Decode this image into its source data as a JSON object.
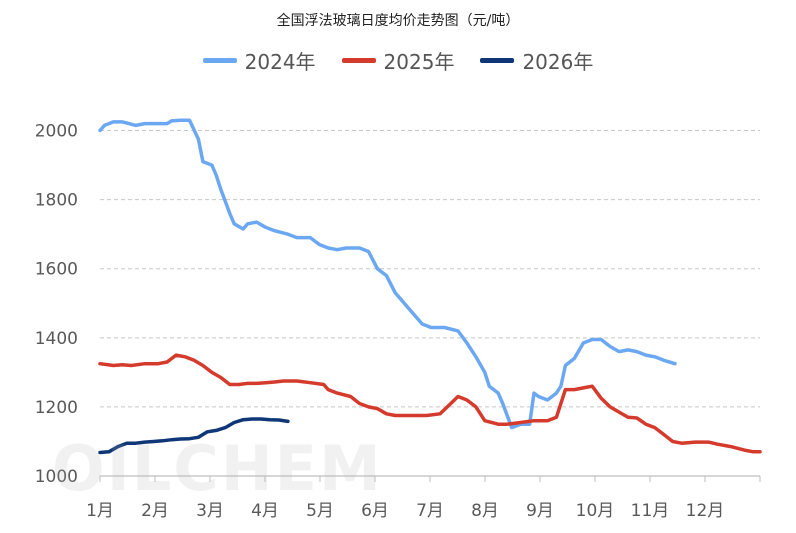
{
  "chart_data": {
    "type": "line",
    "title": "全国浮法玻璃日度均价走势图（元/吨）",
    "xlabel": "",
    "ylabel": "",
    "ylim": [
      1000,
      2100
    ],
    "y_ticks": [
      1000,
      1200,
      1400,
      1600,
      1800,
      2000
    ],
    "x_tick_labels": [
      "1月",
      "2月",
      "3月",
      "4月",
      "5月",
      "6月",
      "7月",
      "8月",
      "9月",
      "10月",
      "11月",
      "12月"
    ],
    "x_unit": "month (1 = start of January, 13 = end of December)",
    "grid": true,
    "legend_position": "top",
    "series": [
      {
        "name": "2024年",
        "color": "#6CA8F2",
        "points": [
          [
            1.0,
            2000
          ],
          [
            1.1,
            2015
          ],
          [
            1.3,
            2025
          ],
          [
            1.5,
            2025
          ],
          [
            1.8,
            2015
          ],
          [
            2.0,
            2020
          ],
          [
            2.2,
            2020
          ],
          [
            2.5,
            2020
          ],
          [
            2.6,
            2028
          ],
          [
            2.8,
            2030
          ],
          [
            3.0,
            2030
          ],
          [
            3.2,
            1975
          ],
          [
            3.3,
            1910
          ],
          [
            3.5,
            1900
          ],
          [
            3.6,
            1870
          ],
          [
            3.7,
            1830
          ],
          [
            3.9,
            1760
          ],
          [
            4.0,
            1730
          ],
          [
            4.2,
            1715
          ],
          [
            4.3,
            1730
          ],
          [
            4.5,
            1735
          ],
          [
            4.7,
            1720
          ],
          [
            4.9,
            1710
          ],
          [
            5.2,
            1700
          ],
          [
            5.4,
            1690
          ],
          [
            5.7,
            1690
          ],
          [
            5.9,
            1670
          ],
          [
            6.1,
            1660
          ],
          [
            6.3,
            1655
          ],
          [
            6.5,
            1660
          ],
          [
            6.8,
            1660
          ],
          [
            7.0,
            1650
          ],
          [
            7.2,
            1600
          ],
          [
            7.4,
            1580
          ],
          [
            7.6,
            1530
          ],
          [
            7.8,
            1500
          ],
          [
            8.0,
            1470
          ],
          [
            8.2,
            1440
          ],
          [
            8.4,
            1430
          ],
          [
            8.7,
            1430
          ],
          [
            9.0,
            1420
          ],
          [
            9.2,
            1385
          ],
          [
            9.4,
            1345
          ],
          [
            9.6,
            1300
          ],
          [
            9.7,
            1260
          ],
          [
            9.9,
            1240
          ],
          [
            10.0,
            1210
          ],
          [
            10.1,
            1175
          ],
          [
            10.2,
            1140
          ],
          [
            10.4,
            1150
          ],
          [
            10.6,
            1150
          ],
          [
            10.7,
            1240
          ],
          [
            10.8,
            1230
          ],
          [
            11.0,
            1220
          ],
          [
            11.2,
            1240
          ],
          [
            11.3,
            1260
          ],
          [
            11.4,
            1320
          ],
          [
            11.6,
            1340
          ],
          [
            11.8,
            1385
          ],
          [
            12.0,
            1395
          ],
          [
            12.2,
            1395
          ],
          [
            12.4,
            1375
          ],
          [
            12.6,
            1360
          ],
          [
            12.8,
            1365
          ],
          [
            13.0,
            1360
          ],
          [
            13.2,
            1350
          ],
          [
            13.4,
            1345
          ],
          [
            13.6,
            1335
          ],
          [
            13.85,
            1325
          ]
        ]
      },
      {
        "name": "2025年",
        "color": "#D43B2C",
        "points": [
          [
            1.0,
            1325
          ],
          [
            1.3,
            1320
          ],
          [
            1.5,
            1322
          ],
          [
            1.7,
            1320
          ],
          [
            2.0,
            1325
          ],
          [
            2.3,
            1325
          ],
          [
            2.5,
            1330
          ],
          [
            2.7,
            1350
          ],
          [
            2.9,
            1345
          ],
          [
            3.1,
            1335
          ],
          [
            3.3,
            1320
          ],
          [
            3.5,
            1300
          ],
          [
            3.7,
            1285
          ],
          [
            3.9,
            1265
          ],
          [
            4.1,
            1265
          ],
          [
            4.3,
            1268
          ],
          [
            4.5,
            1268
          ],
          [
            4.7,
            1270
          ],
          [
            4.9,
            1272
          ],
          [
            5.1,
            1275
          ],
          [
            5.4,
            1275
          ],
          [
            5.7,
            1270
          ],
          [
            6.0,
            1265
          ],
          [
            6.1,
            1250
          ],
          [
            6.3,
            1240
          ],
          [
            6.6,
            1230
          ],
          [
            6.8,
            1210
          ],
          [
            7.0,
            1200
          ],
          [
            7.2,
            1195
          ],
          [
            7.4,
            1180
          ],
          [
            7.6,
            1175
          ],
          [
            8.0,
            1175
          ],
          [
            8.3,
            1175
          ],
          [
            8.6,
            1180
          ],
          [
            8.8,
            1205
          ],
          [
            9.0,
            1230
          ],
          [
            9.2,
            1220
          ],
          [
            9.4,
            1200
          ],
          [
            9.6,
            1160
          ],
          [
            9.9,
            1150
          ],
          [
            10.1,
            1150
          ],
          [
            10.4,
            1155
          ],
          [
            10.7,
            1160
          ],
          [
            11.0,
            1160
          ],
          [
            11.2,
            1170
          ],
          [
            11.4,
            1250
          ],
          [
            11.6,
            1250
          ],
          [
            11.8,
            1255
          ],
          [
            12.0,
            1260
          ],
          [
            12.2,
            1225
          ],
          [
            12.4,
            1200
          ],
          [
            12.6,
            1185
          ],
          [
            12.8,
            1170
          ],
          [
            13.0,
            1168
          ],
          [
            13.2,
            1150
          ],
          [
            13.4,
            1140
          ],
          [
            13.6,
            1120
          ],
          [
            13.8,
            1100
          ],
          [
            14.0,
            1095
          ],
          [
            14.3,
            1098
          ],
          [
            14.6,
            1098
          ],
          [
            14.8,
            1092
          ],
          [
            15.1,
            1085
          ],
          [
            15.4,
            1075
          ],
          [
            15.6,
            1070
          ],
          [
            15.75,
            1070
          ]
        ]
      },
      {
        "name": "2026年",
        "color": "#0F3677",
        "points": [
          [
            1.0,
            1068
          ],
          [
            1.2,
            1070
          ],
          [
            1.4,
            1085
          ],
          [
            1.6,
            1095
          ],
          [
            1.8,
            1095
          ],
          [
            2.0,
            1098
          ],
          [
            2.2,
            1100
          ],
          [
            2.4,
            1102
          ],
          [
            2.6,
            1105
          ],
          [
            2.8,
            1107
          ],
          [
            3.0,
            1108
          ],
          [
            3.2,
            1112
          ],
          [
            3.4,
            1128
          ],
          [
            3.6,
            1132
          ],
          [
            3.8,
            1140
          ],
          [
            4.0,
            1155
          ],
          [
            4.2,
            1163
          ],
          [
            4.4,
            1165
          ],
          [
            4.6,
            1165
          ],
          [
            4.8,
            1163
          ],
          [
            5.0,
            1162
          ],
          [
            5.2,
            1158
          ]
        ]
      }
    ]
  },
  "watermark_text": "OILCHEM"
}
